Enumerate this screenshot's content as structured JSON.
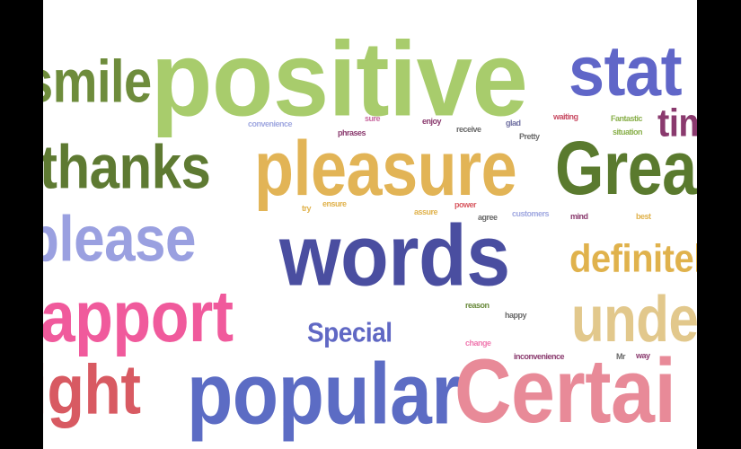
{
  "words": [
    {
      "text": "smile",
      "color": "#6e8c3c"
    },
    {
      "text": "positive",
      "color": "#a8cc6c"
    },
    {
      "text": "stat",
      "color": "#6066c8"
    },
    {
      "text": "tim",
      "color": "#8a3a6e"
    },
    {
      "text": "thanks",
      "color": "#5e7a32"
    },
    {
      "text": "pleasure",
      "color": "#e2b456"
    },
    {
      "text": "Grea",
      "color": "#5a7a2e"
    },
    {
      "text": "please",
      "color": "#9aa0e0"
    },
    {
      "text": "words",
      "color": "#4a4ea0"
    },
    {
      "text": "definitel",
      "color": "#e0b24c"
    },
    {
      "text": "rapport",
      "color": "#f05a9c"
    },
    {
      "text": "Special",
      "color": "#6068c4"
    },
    {
      "text": "unde",
      "color": "#e2c88c"
    },
    {
      "text": "right",
      "color": "#d85a62"
    },
    {
      "text": "popular",
      "color": "#5c6cc4"
    },
    {
      "text": "Certai",
      "color": "#e88a98"
    },
    {
      "text": "convenience",
      "color": "#a0a8e0"
    },
    {
      "text": "sure",
      "color": "#c86aa0"
    },
    {
      "text": "enjoy",
      "color": "#8a3a6e"
    },
    {
      "text": "glad",
      "color": "#6e6ea0"
    },
    {
      "text": "waiting",
      "color": "#c84a62"
    },
    {
      "text": "Fantastic",
      "color": "#8ab04c"
    },
    {
      "text": "situation",
      "color": "#8ab04c"
    },
    {
      "text": "phrases",
      "color": "#8a3a6e"
    },
    {
      "text": "receive",
      "color": "#6a6a6a"
    },
    {
      "text": "Pretty",
      "color": "#6e6e6e"
    },
    {
      "text": "try",
      "color": "#e0b24c"
    },
    {
      "text": "ensure",
      "color": "#e0b24c"
    },
    {
      "text": "assure",
      "color": "#e0b24c"
    },
    {
      "text": "power",
      "color": "#d85a62"
    },
    {
      "text": "agree",
      "color": "#6a6a6a"
    },
    {
      "text": "customers",
      "color": "#a0a8e0"
    },
    {
      "text": "mind",
      "color": "#8a3a6e"
    },
    {
      "text": "best",
      "color": "#e0b24c"
    },
    {
      "text": "reason",
      "color": "#6a8a3c"
    },
    {
      "text": "happy",
      "color": "#6a6a6a"
    },
    {
      "text": "change",
      "color": "#f07ab0"
    },
    {
      "text": "inconvenience",
      "color": "#8a3a6e"
    },
    {
      "text": "Mr",
      "color": "#6a6a6a"
    },
    {
      "text": "way",
      "color": "#8a3a6e"
    }
  ]
}
